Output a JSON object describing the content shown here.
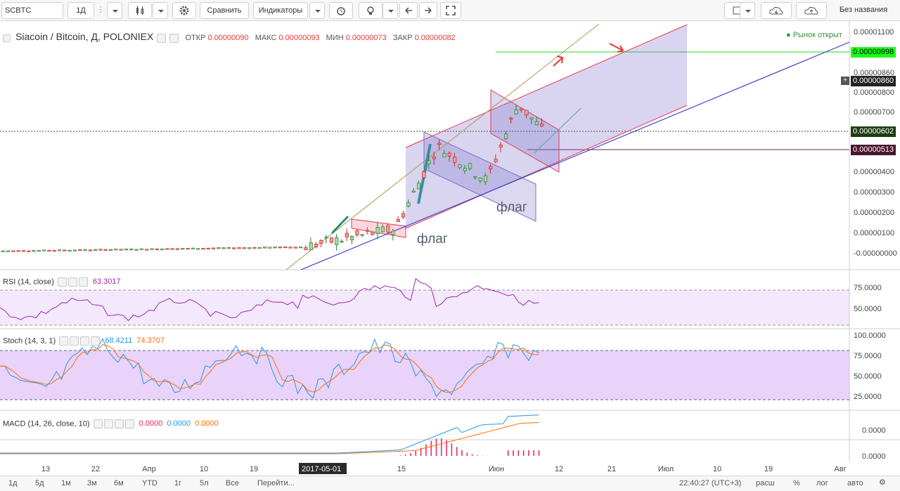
{
  "toolbar": {
    "symbol": "SCBTC",
    "interval": "1Д",
    "compare_label": "Сравнить",
    "indicators_label": "Индикаторы",
    "layout_name": "Без названия"
  },
  "main_legend": {
    "title": "Siacoin / Bitcoin, Д, POLONIEX",
    "open_label": "ОТКР",
    "open_value": "0.00000090",
    "high_label": "МАКС",
    "high_value": "0.00000093",
    "low_label": "МИН",
    "low_value": "0.00000073",
    "close_label": "ЗАКР",
    "close_value": "0.00000082",
    "market_status": "Рынок открыт"
  },
  "price_axis": {
    "ticks": [
      "0.00001100",
      "0.00000980",
      "0.00000860",
      "0.00000800",
      "0.00000700",
      "0.00000600",
      "0.00000500",
      "0.00000400",
      "0.00000300",
      "0.00000200",
      "0.00000100",
      "-0.00000000"
    ],
    "tags": [
      {
        "value": "0.00000998",
        "color": "#18ff18",
        "text_color": "#000000"
      },
      {
        "value": "0.00000860",
        "color": "#222222",
        "text_color": "#ffffff"
      },
      {
        "value": "0.00000602",
        "color": "#1f3d12",
        "text_color": "#ffffff"
      },
      {
        "value": "0.00000513",
        "color": "#4a1530",
        "text_color": "#ffffff"
      }
    ]
  },
  "annotations": [
    "флаг",
    "флаг"
  ],
  "rsi": {
    "label": "RSI (14, close)",
    "value": "63.3017",
    "ticks": [
      "75.0000",
      "50.0000"
    ]
  },
  "stoch": {
    "label": "Stoch (14, 3, 1)",
    "k_value": "68.4211",
    "d_value": "74.3707",
    "ticks": [
      "100.0000",
      "75.0000",
      "50.0000",
      "25.0000"
    ]
  },
  "macd": {
    "label": "MACD (14, 26, close, 10)",
    "hist_value": "0.0000",
    "macd_value": "0.0000",
    "signal_value": "0.0000",
    "ticks": [
      "0.0000",
      "0.0000"
    ]
  },
  "time_axis": [
    "13",
    "22",
    "Апр",
    "10",
    "19",
    "2017-05-01",
    "15",
    "Июн",
    "12",
    "21",
    "Июл",
    "10",
    "19",
    "Авг"
  ],
  "bottombar": {
    "ranges": [
      "1д",
      "5д",
      "1м",
      "3м",
      "6м",
      "YTD",
      "1г",
      "5л",
      "Все"
    ],
    "goto_label": "Перейти...",
    "time": "22:40:27 (UTC+3)",
    "ext_label": "расш",
    "percent_label": "%",
    "log_label": "лог",
    "auto_label": "авто"
  },
  "colors": {
    "up": "#53b987",
    "down": "#eb4d5c",
    "rsi": "#9c27b0",
    "stoch_k": "#2196f3",
    "stoch_d": "#ff6d00",
    "macd_line": "#2196f3",
    "signal_line": "#ff6d00",
    "hist": "#e91e63"
  },
  "chart_data": {
    "type": "candlestick",
    "title": "Siacoin / Bitcoin, Д, POLONIEX",
    "x_range": [
      "2017-03",
      "2017-08"
    ],
    "y_range": [
      0,
      1.1e-05
    ],
    "price_segments": [
      {
        "period": "mar-apr",
        "approx_close": 1e-07
      },
      {
        "period": "2017-05-01",
        "approx_close": 3e-07
      },
      {
        "period": "2017-05-10",
        "approx_close": 1.2e-06
      },
      {
        "period": "2017-05-18",
        "approx_close": 5.3e-06
      },
      {
        "period": "2017-05-27",
        "approx_close": 3.6e-06
      },
      {
        "period": "2017-06-04",
        "approx_close": 7.4e-06
      },
      {
        "period": "2017-06-09",
        "approx_close": 6e-06
      }
    ],
    "horizontal_levels": [
      9.98e-06,
      6.02e-06,
      5.13e-06
    ]
  }
}
